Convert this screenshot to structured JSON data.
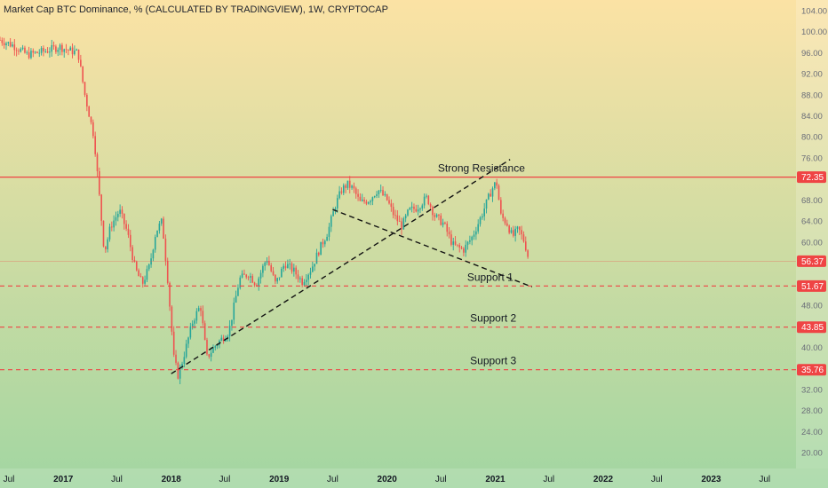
{
  "chart_title": "Market Cap BTC Dominance, % (CALCULATED BY TRADINGVIEW), 1W, CRYPTOCAP",
  "colors": {
    "bg_top": "#fbe2a4",
    "bg_bottom": "#a2d6a2",
    "up": "#26a69a",
    "down": "#ef5350",
    "level": "#ef4444",
    "trend": "#111111",
    "axis_text": "#6a6d78"
  },
  "chart_data": {
    "type": "candlestick",
    "title": "Market Cap BTC Dominance, % (CALCULATED BY TRADINGVIEW), 1W, CRYPTOCAP",
    "ylim": [
      17,
      106
    ],
    "xlim": [
      "2016-06-01",
      "2023-10-15"
    ],
    "y_ticks": [
      "104.00",
      "100.00",
      "96.00",
      "92.00",
      "88.00",
      "84.00",
      "80.00",
      "76.00",
      "68.00",
      "64.00",
      "60.00",
      "48.00",
      "40.00",
      "32.00",
      "28.00",
      "24.00",
      "20.00"
    ],
    "x_ticks": [
      {
        "date": "2016-07-01",
        "label": "Jul"
      },
      {
        "date": "2017-01-01",
        "label": "2017"
      },
      {
        "date": "2017-07-01",
        "label": "Jul"
      },
      {
        "date": "2018-01-01",
        "label": "2018"
      },
      {
        "date": "2018-07-01",
        "label": "Jul"
      },
      {
        "date": "2019-01-01",
        "label": "2019"
      },
      {
        "date": "2019-07-01",
        "label": "Jul"
      },
      {
        "date": "2020-01-01",
        "label": "2020"
      },
      {
        "date": "2020-07-01",
        "label": "Jul"
      },
      {
        "date": "2021-01-01",
        "label": "2021"
      },
      {
        "date": "2021-07-01",
        "label": "Jul"
      },
      {
        "date": "2022-01-01",
        "label": "2022"
      },
      {
        "date": "2022-07-01",
        "label": "Jul"
      },
      {
        "date": "2023-01-01",
        "label": "2023"
      },
      {
        "date": "2023-07-01",
        "label": "Jul"
      }
    ],
    "levels": [
      {
        "value": 72.35,
        "label": "72.35",
        "style": "solid",
        "annotation": "Strong Resistance",
        "annotation_date": "2020-11-15"
      },
      {
        "value": 56.37,
        "label": "56.37",
        "style": "current",
        "annotation": "",
        "annotation_date": ""
      },
      {
        "value": 51.67,
        "label": "51.67",
        "style": "dashed",
        "annotation": "Support 1",
        "annotation_date": "2020-12-15"
      },
      {
        "value": 43.85,
        "label": "43.85",
        "style": "dashed",
        "annotation": "Support 2",
        "annotation_date": "2020-12-25"
      },
      {
        "value": 35.76,
        "label": "35.76",
        "style": "dashed",
        "annotation": "Support 3",
        "annotation_date": "2020-12-25"
      }
    ],
    "trendlines": [
      {
        "from": [
          "2018-01-01",
          35.0
        ],
        "to": [
          "2021-02-20",
          75.7
        ]
      },
      {
        "from": [
          "2019-07-01",
          66.2
        ],
        "to": [
          "2021-05-05",
          51.5
        ]
      }
    ],
    "close_anchors": [
      [
        "2016-06-01",
        98.4
      ],
      [
        "2016-07-15",
        97.4
      ],
      [
        "2016-09-01",
        95.6
      ],
      [
        "2016-11-01",
        96.3
      ],
      [
        "2016-12-20",
        97.1
      ],
      [
        "2017-01-20",
        96.4
      ],
      [
        "2017-02-20",
        96.0
      ],
      [
        "2017-03-15",
        88.0
      ],
      [
        "2017-04-15",
        80.0
      ],
      [
        "2017-05-20",
        58.0
      ],
      [
        "2017-06-10",
        63.0
      ],
      [
        "2017-07-10",
        66.0
      ],
      [
        "2017-08-05",
        62.0
      ],
      [
        "2017-09-01",
        55.0
      ],
      [
        "2017-09-25",
        52.0
      ],
      [
        "2017-10-20",
        55.5
      ],
      [
        "2017-11-10",
        62.0
      ],
      [
        "2017-12-01",
        64.0
      ],
      [
        "2017-12-20",
        53.0
      ],
      [
        "2018-01-10",
        38.0
      ],
      [
        "2018-01-25",
        34.5
      ],
      [
        "2018-02-20",
        40.0
      ],
      [
        "2018-03-15",
        45.0
      ],
      [
        "2018-04-10",
        48.0
      ],
      [
        "2018-05-01",
        38.0
      ],
      [
        "2018-06-01",
        40.5
      ],
      [
        "2018-07-15",
        43.0
      ],
      [
        "2018-08-20",
        53.0
      ],
      [
        "2018-09-20",
        54.0
      ],
      [
        "2018-10-15",
        52.0
      ],
      [
        "2018-11-20",
        57.0
      ],
      [
        "2018-12-20",
        52.0
      ],
      [
        "2019-01-20",
        56.0
      ],
      [
        "2019-02-20",
        54.5
      ],
      [
        "2019-03-20",
        52.5
      ],
      [
        "2019-04-20",
        55.0
      ],
      [
        "2019-05-20",
        59.0
      ],
      [
        "2019-06-15",
        62.0
      ],
      [
        "2019-07-10",
        67.0
      ],
      [
        "2019-08-01",
        70.0
      ],
      [
        "2019-08-20",
        71.0
      ],
      [
        "2019-09-10",
        70.0
      ],
      [
        "2019-10-01",
        67.5
      ],
      [
        "2019-11-01",
        68.0
      ],
      [
        "2019-12-01",
        70.0
      ],
      [
        "2020-01-01",
        68.0
      ],
      [
        "2020-01-25",
        65.0
      ],
      [
        "2020-02-20",
        63.0
      ],
      [
        "2020-03-15",
        66.0
      ],
      [
        "2020-04-10",
        66.5
      ],
      [
        "2020-05-15",
        68.5
      ],
      [
        "2020-06-10",
        65.0
      ],
      [
        "2020-07-10",
        63.5
      ],
      [
        "2020-08-10",
        59.5
      ],
      [
        "2020-09-15",
        58.5
      ],
      [
        "2020-10-15",
        61.0
      ],
      [
        "2020-11-15",
        65.0
      ],
      [
        "2020-12-20",
        70.0
      ],
      [
        "2021-01-05",
        71.5
      ],
      [
        "2021-01-20",
        65.0
      ],
      [
        "2021-02-10",
        63.5
      ],
      [
        "2021-02-28",
        61.0
      ],
      [
        "2021-03-20",
        62.5
      ],
      [
        "2021-04-10",
        60.0
      ],
      [
        "2021-04-25",
        56.5
      ]
    ]
  }
}
